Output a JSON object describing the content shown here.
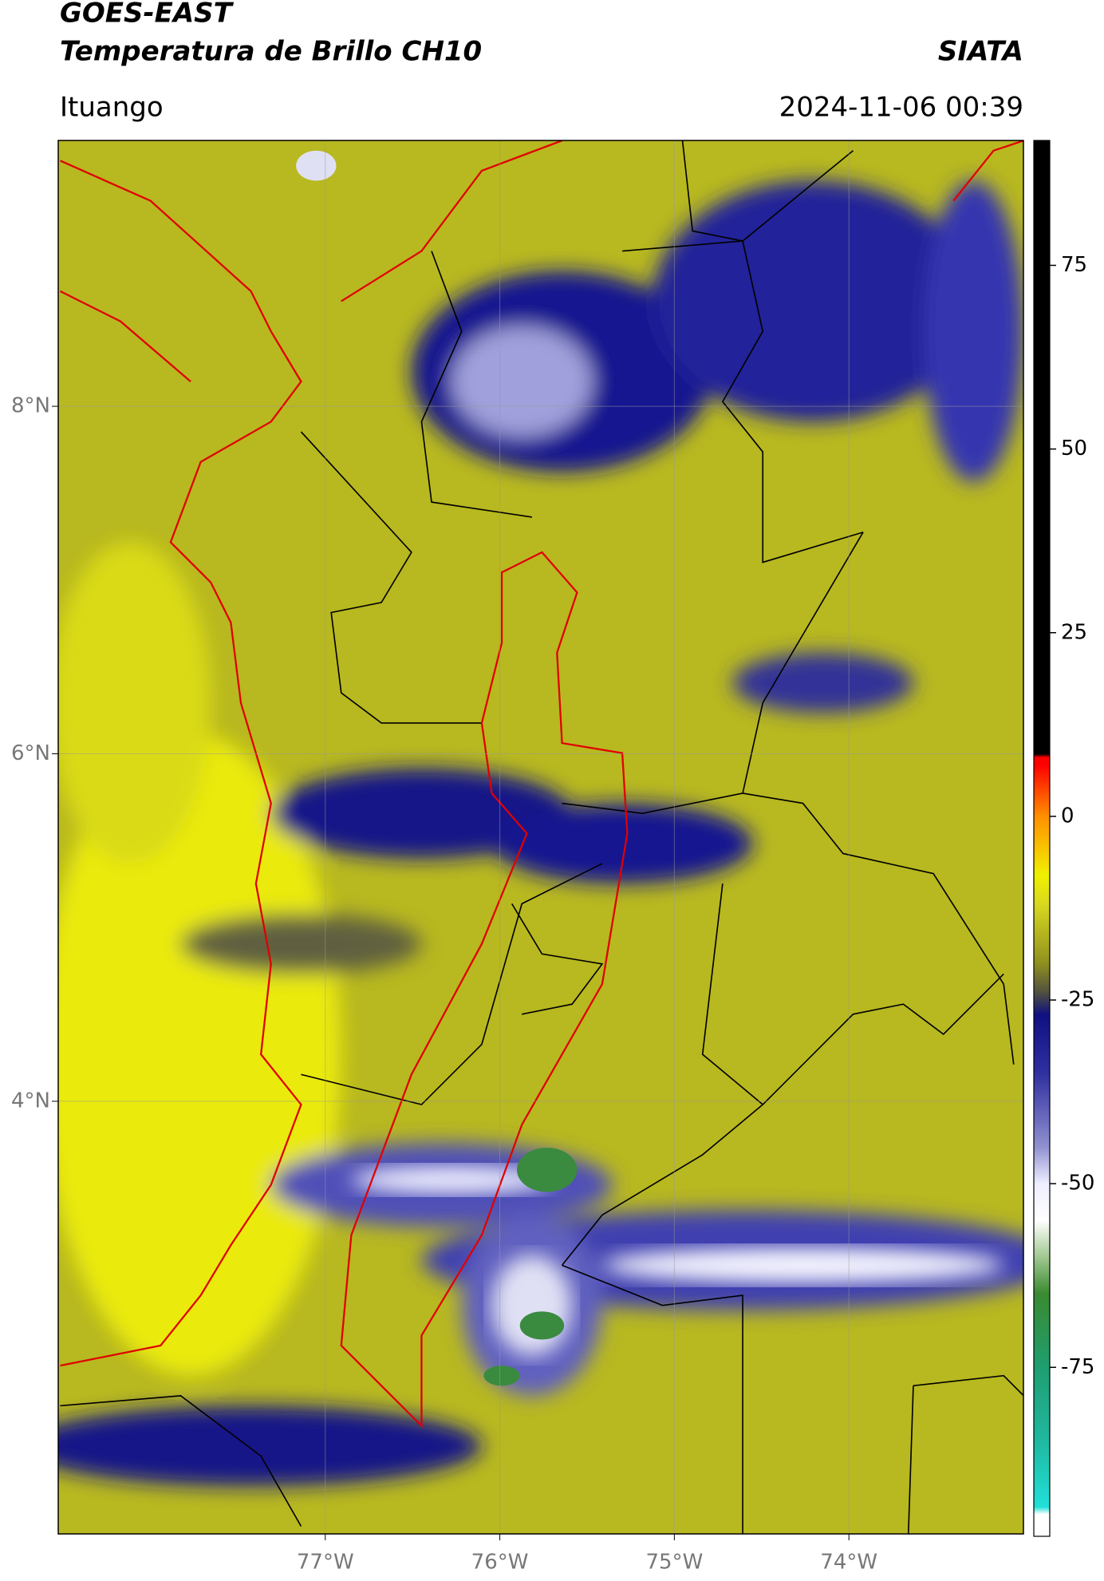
{
  "header": {
    "title": "GOES-EAST",
    "subtitle": "Temperatura de Brillo CH10",
    "brand": "SIATA",
    "region": "Ituango",
    "timestamp": "2024-11-06 00:39"
  },
  "map": {
    "xlim": [
      -78.53,
      -73.0
    ],
    "ylim": [
      1.51,
      9.53
    ],
    "xticks": [
      {
        "value": -77,
        "label": "77°W"
      },
      {
        "value": -76,
        "label": "76°W"
      },
      {
        "value": -75,
        "label": "75°W"
      },
      {
        "value": -74,
        "label": "74°W"
      }
    ],
    "yticks": [
      {
        "value": 8,
        "label": "8°N"
      },
      {
        "value": 6,
        "label": "6°N"
      },
      {
        "value": 4,
        "label": "4°N"
      }
    ],
    "grid": true
  },
  "colorbar": {
    "clim": [
      -98,
      92
    ],
    "ticks": [
      75,
      50,
      25,
      0,
      -25,
      -50,
      -75
    ],
    "colormap": [
      {
        "value": -98,
        "color": "#ffffff"
      },
      {
        "value": -95,
        "color": "#ffffff"
      },
      {
        "value": -94,
        "color": "#20e0d8"
      },
      {
        "value": -85,
        "color": "#20b8a0"
      },
      {
        "value": -75,
        "color": "#1f9e70"
      },
      {
        "value": -65,
        "color": "#3a8a30"
      },
      {
        "value": -60,
        "color": "#a0c890"
      },
      {
        "value": -55,
        "color": "#ffffff"
      },
      {
        "value": -50,
        "color": "#eeeeff"
      },
      {
        "value": -45,
        "color": "#9090d0"
      },
      {
        "value": -35,
        "color": "#3030a0"
      },
      {
        "value": -27,
        "color": "#101080"
      },
      {
        "value": -24,
        "color": "#505040"
      },
      {
        "value": -20,
        "color": "#909020"
      },
      {
        "value": -12,
        "color": "#d8d820"
      },
      {
        "value": -8,
        "color": "#f0f000"
      },
      {
        "value": 0,
        "color": "#ff9000"
      },
      {
        "value": 7,
        "color": "#ff0000"
      },
      {
        "value": 8,
        "color": "#ff0000"
      },
      {
        "value": 8.5,
        "color": "#000000"
      },
      {
        "value": 92,
        "color": "#000000"
      }
    ]
  }
}
